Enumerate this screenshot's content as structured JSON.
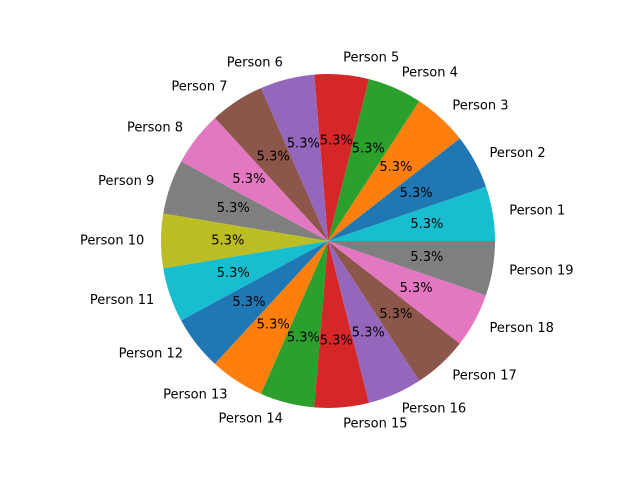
{
  "chart_data": {
    "type": "pie",
    "title": "",
    "labels": [
      "Person 1",
      "Person 2",
      "Person 3",
      "Person 4",
      "Person 5",
      "Person 6",
      "Person 7",
      "Person 8",
      "Person 9",
      "Person 10",
      "Person 11",
      "Person 12",
      "Person 13",
      "Person 14",
      "Person 15",
      "Person 16",
      "Person 17",
      "Person 18",
      "Person 19"
    ],
    "values": [
      1,
      1,
      1,
      1,
      1,
      1,
      1,
      1,
      1,
      1,
      1,
      1,
      1,
      1,
      1,
      1,
      1,
      1,
      1
    ],
    "percent_labels": [
      "5.3%",
      "5.3%",
      "5.3%",
      "5.3%",
      "5.3%",
      "5.3%",
      "5.3%",
      "5.3%",
      "5.3%",
      "5.3%",
      "5.3%",
      "5.3%",
      "5.3%",
      "5.3%",
      "5.3%",
      "5.3%",
      "5.3%",
      "5.3%",
      "5.3%"
    ],
    "colors": [
      "#17becf",
      "#1f77b4",
      "#ff7f0e",
      "#2ca02c",
      "#d62728",
      "#9467bd",
      "#8c564b",
      "#e377c2",
      "#7f7f7f",
      "#bcbd22",
      "#17becf",
      "#1f77b4",
      "#ff7f0e",
      "#2ca02c",
      "#d62728",
      "#9467bd",
      "#8c564b",
      "#e377c2",
      "#7f7f7f"
    ],
    "start_angle_deg": 0,
    "direction": "counterclockwise"
  }
}
